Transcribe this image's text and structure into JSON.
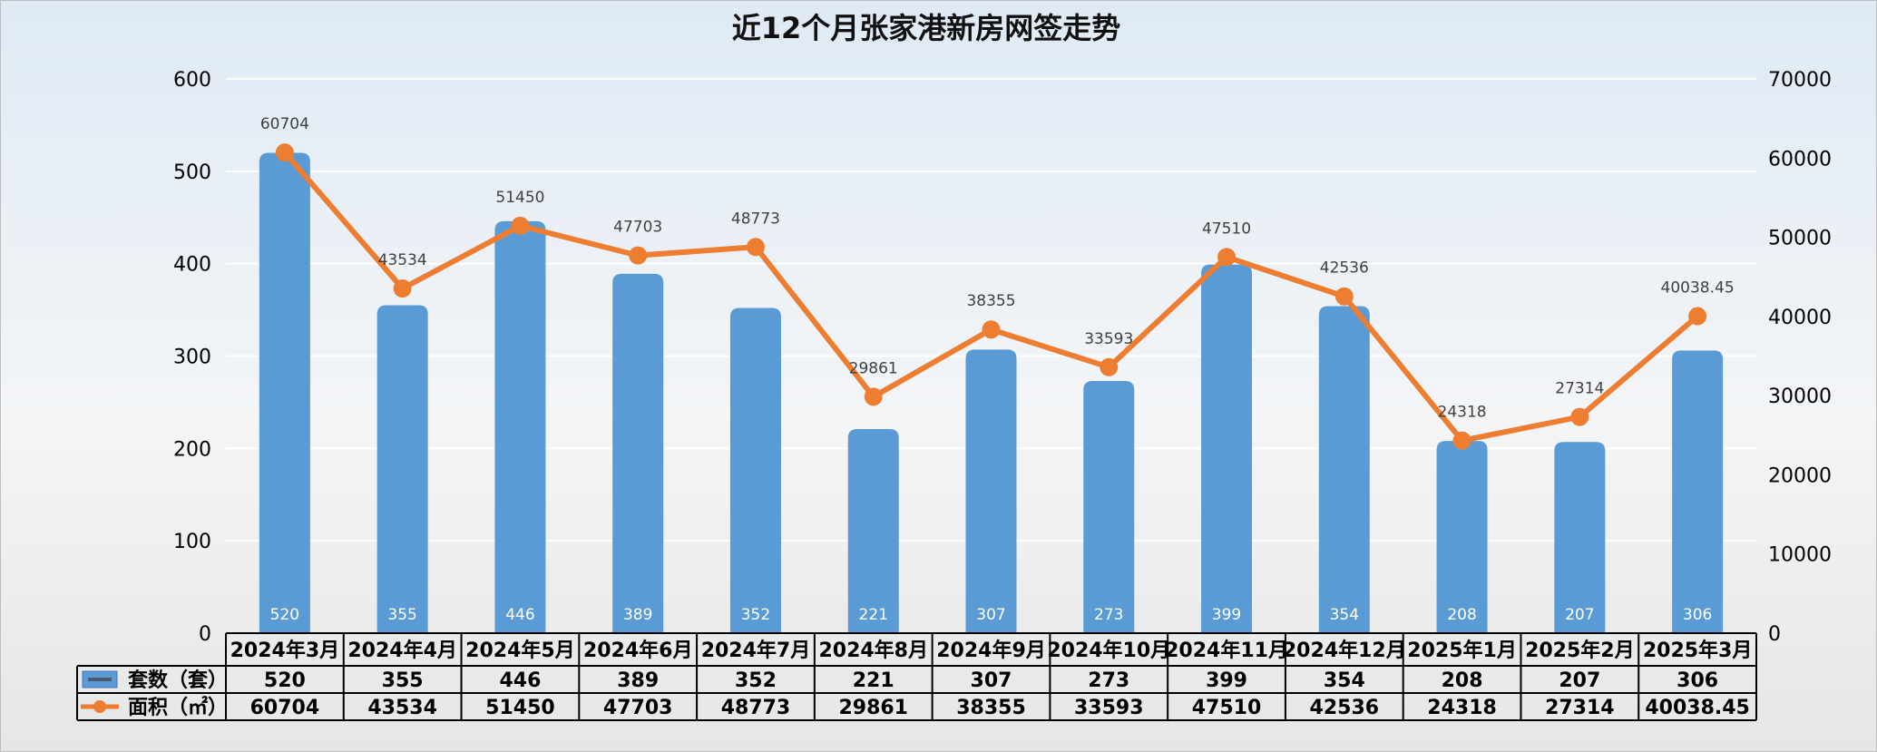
{
  "chart_data": {
    "type": "bar",
    "title": "近12个月张家港新房网签走势",
    "categories": [
      "2024年3月",
      "2024年4月",
      "2024年5月",
      "2024年6月",
      "2024年7月",
      "2024年8月",
      "2024年9月",
      "2024年10月",
      "2024年11月",
      "2024年12月",
      "2025年1月",
      "2025年2月",
      "2025年3月"
    ],
    "series": [
      {
        "name": "套数（套）",
        "type": "bar",
        "axis": "left",
        "color": "#5b9bd5",
        "values": [
          520,
          355,
          446,
          389,
          352,
          221,
          307,
          273,
          399,
          354,
          208,
          207,
          306
        ],
        "labels": [
          "520",
          "355",
          "446",
          "389",
          "352",
          "221",
          "307",
          "273",
          "399",
          "354",
          "208",
          "207",
          "306"
        ]
      },
      {
        "name": "面积（㎡）",
        "type": "line",
        "axis": "right",
        "color": "#ed7d31",
        "values": [
          60704,
          43534,
          51450,
          47703,
          48773,
          29861,
          38355,
          33593,
          47510,
          42536,
          24318,
          27314,
          40038.45
        ],
        "labels": [
          "60704",
          "43534",
          "51450",
          "47703",
          "48773",
          "29861",
          "38355",
          "33593",
          "47510",
          "42536",
          "24318",
          "27314",
          "40038.45"
        ]
      }
    ],
    "y_left": {
      "min": 0,
      "max": 600,
      "ticks": [
        "0",
        "100",
        "200",
        "300",
        "400",
        "500",
        "600"
      ]
    },
    "y_right": {
      "min": 0,
      "max": 70000,
      "ticks": [
        "0",
        "10000",
        "20000",
        "30000",
        "40000",
        "50000",
        "60000",
        "70000"
      ]
    },
    "grid": true,
    "legend": "data-table"
  }
}
